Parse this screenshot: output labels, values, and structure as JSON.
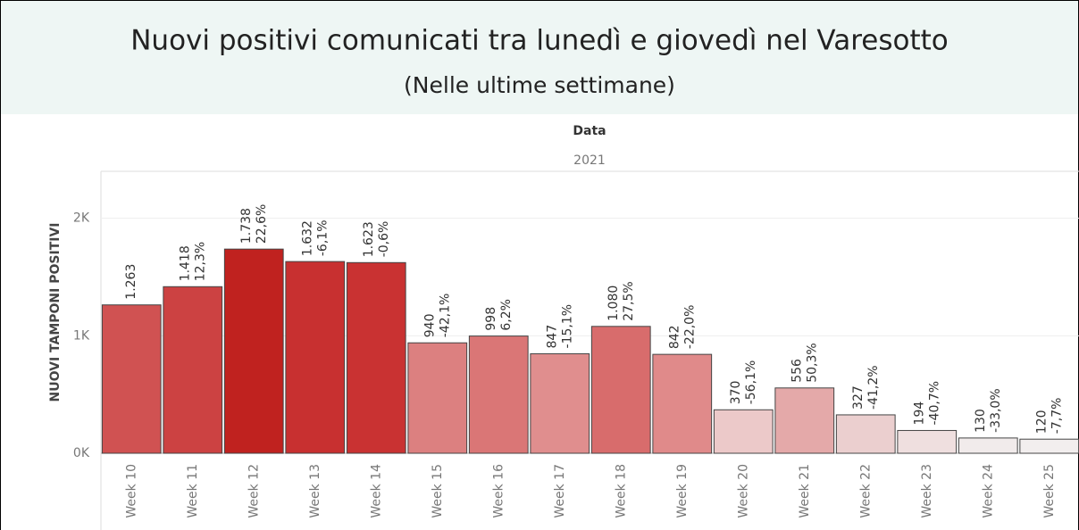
{
  "chart_data": {
    "type": "bar",
    "title": "Nuovi positivi comunicati tra lunedì e giovedì nel Varesotto",
    "subtitle": "(Nelle ultime settimane)",
    "x_axis_title": "Data",
    "x_group": "2021",
    "y_axis_title": "NUOVI TAMPONI POSITIVI",
    "categories": [
      "Week 10",
      "Week 11",
      "Week 12",
      "Week 13",
      "Week 14",
      "Week 15",
      "Week 16",
      "Week 17",
      "Week 18",
      "Week 19",
      "Week 20",
      "Week 21",
      "Week 22",
      "Week 23",
      "Week 24",
      "Week 25"
    ],
    "values": [
      1263,
      1418,
      1738,
      1632,
      1623,
      940,
      998,
      847,
      1080,
      842,
      370,
      556,
      327,
      194,
      130,
      120
    ],
    "value_labels": [
      "1.263",
      "1.418",
      "1.738",
      "1.632",
      "1.623",
      "940",
      "998",
      "847",
      "1.080",
      "842",
      "370",
      "556",
      "327",
      "194",
      "130",
      "120"
    ],
    "change_labels": [
      null,
      "12,3%",
      "22,6%",
      "-6,1%",
      "-0,6%",
      "-42,1%",
      "6,2%",
      "-15,1%",
      "27,5%",
      "-22,0%",
      "-56,1%",
      "50,3%",
      "-41,2%",
      "-40,7%",
      "-33,0%",
      "-7,7%"
    ],
    "colors": [
      "#d05252",
      "#cc4242",
      "#c0221f",
      "#c83030",
      "#c93232",
      "#dc8080",
      "#da7676",
      "#e08e8e",
      "#d86c6c",
      "#e08a8a",
      "#ecc9c9",
      "#e4a9a9",
      "#ebcfcf",
      "#efdfdf",
      "#f1ebeb",
      "#f2eeee"
    ],
    "ylim": [
      0,
      2400
    ],
    "yticks": [
      {
        "value": 0,
        "label": "0K"
      },
      {
        "value": 1000,
        "label": "1K"
      },
      {
        "value": 2000,
        "label": "2K"
      }
    ],
    "grid": true
  }
}
